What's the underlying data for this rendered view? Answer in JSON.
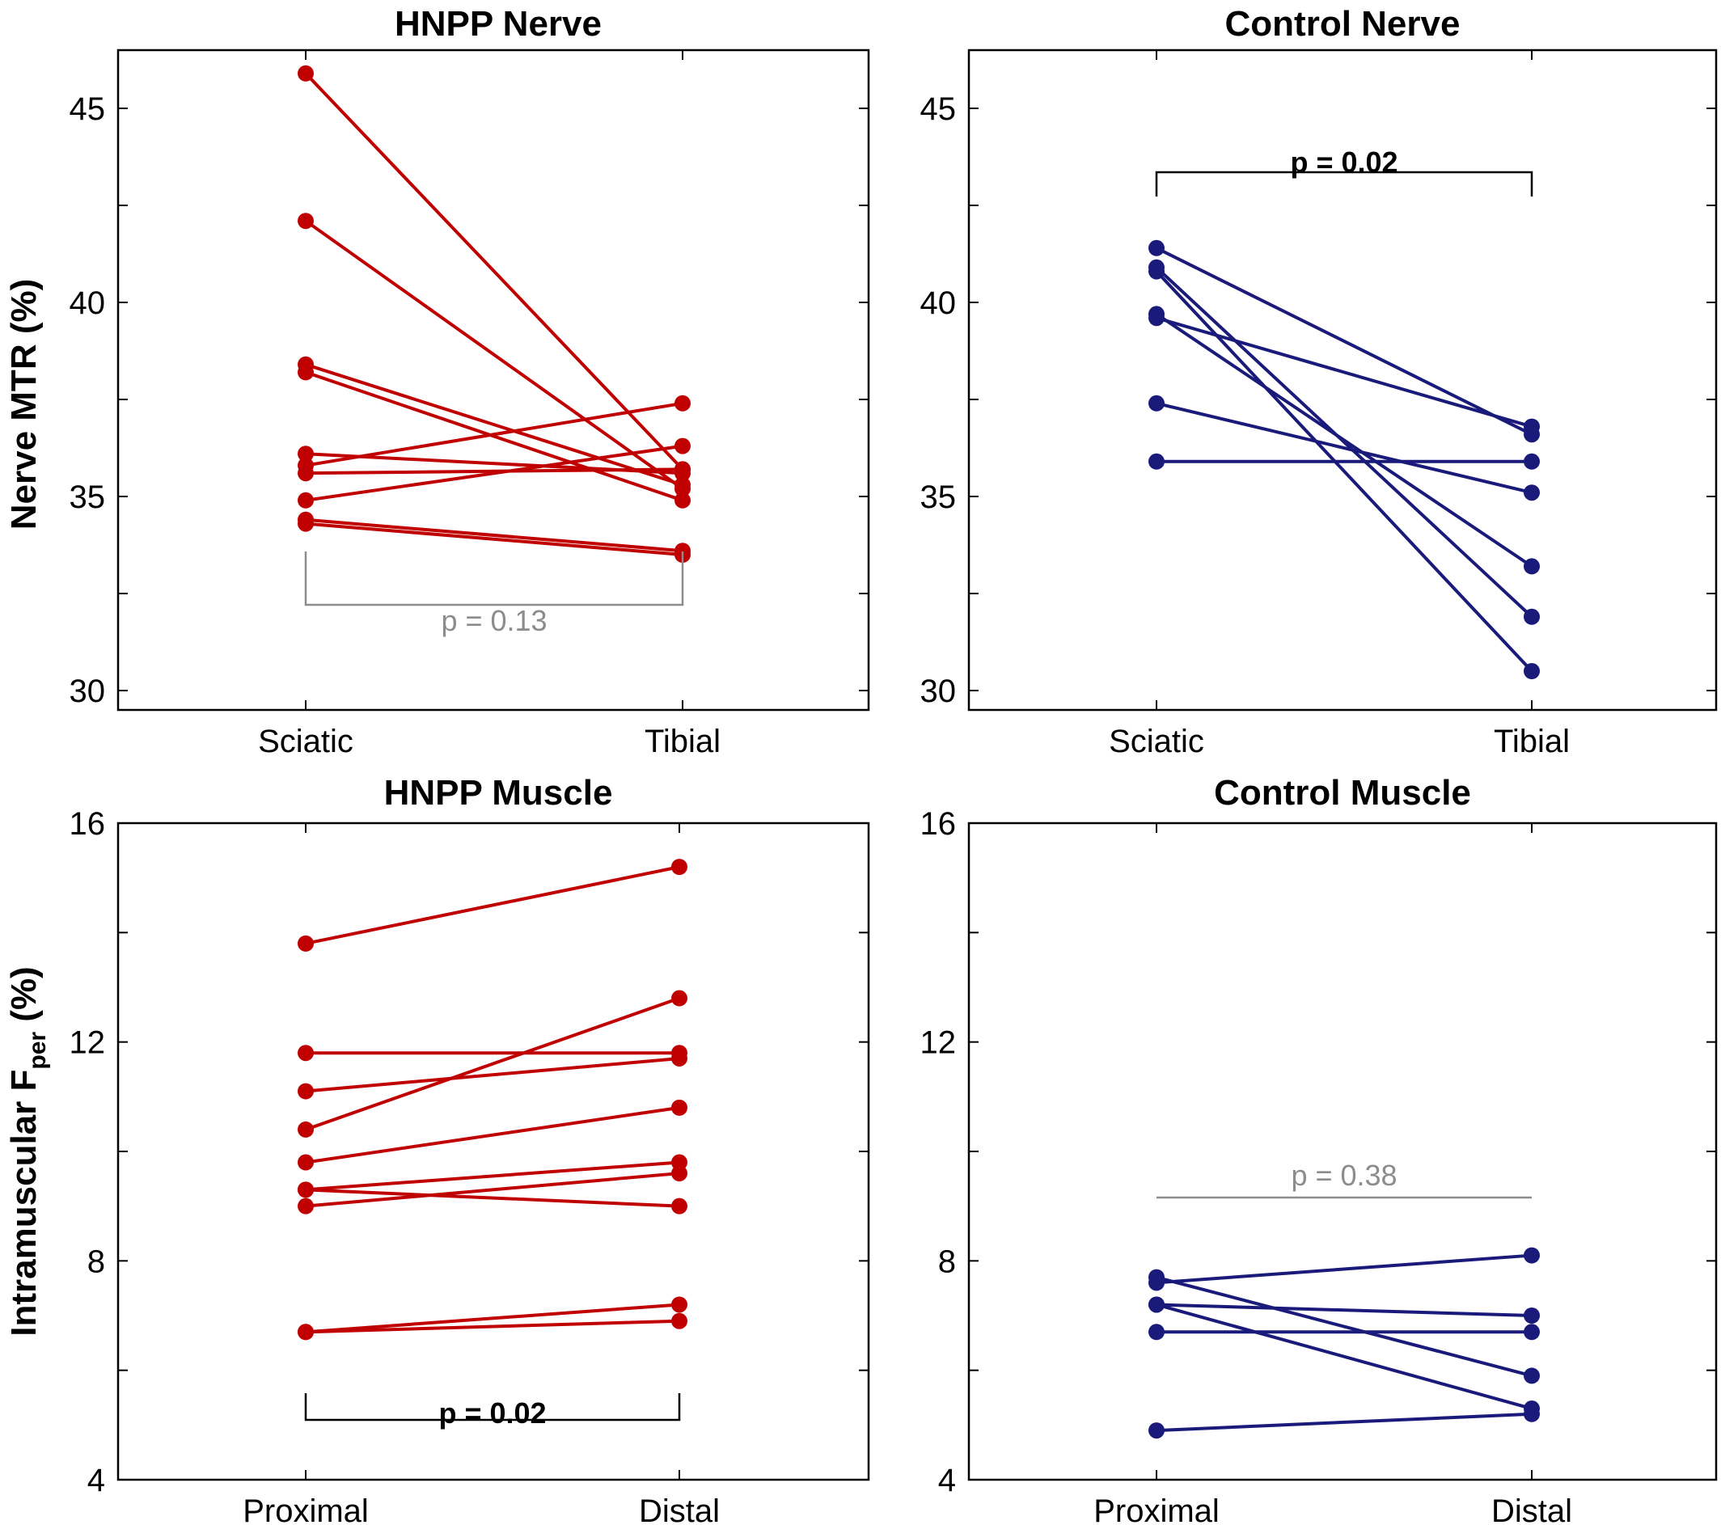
{
  "figure": {
    "ylabel_nerve": "Nerve MTR (%)",
    "ylabel_muscle_main": "Intramuscular F",
    "ylabel_muscle_sub": "per",
    "ylabel_muscle_unit": " (%)"
  },
  "colors": {
    "hnpp": "#c00000",
    "control": "#1a1a7a",
    "sig": "#000000",
    "nsig": "#8c8c8c"
  },
  "chart_data": [
    {
      "type": "line",
      "title": "HNPP Nerve",
      "ylabel": "Nerve MTR (%)",
      "categories": [
        "Sciatic",
        "Tibial"
      ],
      "ylim": [
        29.5,
        46.5
      ],
      "yticks": [
        30,
        35,
        40,
        45
      ],
      "color": "#c00000",
      "series": [
        {
          "values": [
            45.9,
            35.7
          ]
        },
        {
          "values": [
            42.1,
            35.2
          ]
        },
        {
          "values": [
            38.4,
            35.3
          ]
        },
        {
          "values": [
            38.2,
            34.9
          ]
        },
        {
          "values": [
            36.1,
            35.6
          ]
        },
        {
          "values": [
            35.8,
            37.4
          ]
        },
        {
          "values": [
            35.6,
            35.7
          ]
        },
        {
          "values": [
            34.9,
            36.3
          ]
        },
        {
          "values": [
            34.4,
            33.6
          ]
        },
        {
          "values": [
            34.3,
            33.5
          ]
        }
      ],
      "annotation": {
        "text": "p = 0.13",
        "significant": false,
        "position": "below"
      }
    },
    {
      "type": "line",
      "title": "Control Nerve",
      "ylabel": "",
      "categories": [
        "Sciatic",
        "Tibial"
      ],
      "ylim": [
        29.5,
        46.5
      ],
      "yticks": [
        30,
        35,
        40,
        45
      ],
      "color": "#1a1a7a",
      "series": [
        {
          "values": [
            41.4,
            36.6
          ]
        },
        {
          "values": [
            40.9,
            31.9
          ]
        },
        {
          "values": [
            40.8,
            30.5
          ]
        },
        {
          "values": [
            39.7,
            33.2
          ]
        },
        {
          "values": [
            39.6,
            36.8
          ]
        },
        {
          "values": [
            37.4,
            35.1
          ]
        },
        {
          "values": [
            35.9,
            35.9
          ]
        }
      ],
      "annotation": {
        "text": "p = 0.02",
        "significant": true,
        "position": "above"
      }
    },
    {
      "type": "line",
      "title": "HNPP Muscle",
      "ylabel": "Intramuscular Fper (%)",
      "categories": [
        "Proximal",
        "Distal"
      ],
      "ylim": [
        4,
        16
      ],
      "yticks": [
        4,
        8,
        12,
        16
      ],
      "color": "#c00000",
      "series": [
        {
          "values": [
            13.8,
            15.2
          ]
        },
        {
          "values": [
            11.8,
            11.8
          ]
        },
        {
          "values": [
            11.1,
            11.7
          ]
        },
        {
          "values": [
            10.4,
            12.8
          ]
        },
        {
          "values": [
            9.8,
            10.8
          ]
        },
        {
          "values": [
            9.3,
            9.8
          ]
        },
        {
          "values": [
            9.3,
            9.0
          ]
        },
        {
          "values": [
            9.0,
            9.6
          ]
        },
        {
          "values": [
            6.7,
            7.2
          ]
        },
        {
          "values": [
            6.7,
            6.9
          ]
        }
      ],
      "annotation": {
        "text": "p = 0.02",
        "significant": true,
        "position": "below"
      }
    },
    {
      "type": "line",
      "title": "Control Muscle",
      "ylabel": "",
      "categories": [
        "Proximal",
        "Distal"
      ],
      "ylim": [
        4,
        16
      ],
      "yticks": [
        4,
        8,
        12,
        16
      ],
      "color": "#1a1a7a",
      "series": [
        {
          "values": [
            7.7,
            5.9
          ]
        },
        {
          "values": [
            7.6,
            8.1
          ]
        },
        {
          "values": [
            7.2,
            7.0
          ]
        },
        {
          "values": [
            7.2,
            5.3
          ]
        },
        {
          "values": [
            6.7,
            6.7
          ]
        },
        {
          "values": [
            4.9,
            5.2
          ]
        }
      ],
      "annotation": {
        "text": "p = 0.38",
        "significant": false,
        "position": "above"
      }
    }
  ]
}
